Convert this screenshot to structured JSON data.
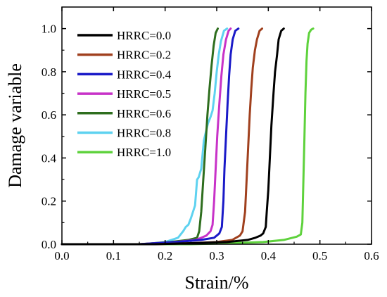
{
  "chart_data": {
    "type": "line",
    "xlabel": "Strain/%",
    "ylabel": "Damage variable",
    "xlim": [
      0.0,
      0.6
    ],
    "ylim": [
      0.0,
      1.1
    ],
    "x_ticks": [
      "0.0",
      "0.1",
      "0.2",
      "0.3",
      "0.4",
      "0.5",
      "0.6"
    ],
    "y_ticks": [
      "0.0",
      "0.2",
      "0.4",
      "0.6",
      "0.8",
      "1.0"
    ],
    "x_tick_values": [
      0.0,
      0.1,
      0.2,
      0.3,
      0.4,
      0.5,
      0.6
    ],
    "y_tick_values": [
      0.0,
      0.2,
      0.4,
      0.6,
      0.8,
      1.0
    ],
    "grid": false,
    "legend_position": "top-left",
    "series": [
      {
        "name": "HRRC=0.0",
        "color": "#000000",
        "x": [
          0.0,
          0.18,
          0.25,
          0.32,
          0.36,
          0.375,
          0.385,
          0.39,
          0.395,
          0.397,
          0.4,
          0.403,
          0.406,
          0.41,
          0.413,
          0.417,
          0.42,
          0.425,
          0.43
        ],
        "y": [
          0.0,
          0.0,
          0.005,
          0.01,
          0.02,
          0.03,
          0.04,
          0.05,
          0.08,
          0.15,
          0.25,
          0.4,
          0.55,
          0.7,
          0.8,
          0.88,
          0.95,
          0.99,
          1.0
        ]
      },
      {
        "name": "HRRC=0.2",
        "color": "#a0401e",
        "x": [
          0.0,
          0.18,
          0.25,
          0.3,
          0.33,
          0.345,
          0.35,
          0.355,
          0.358,
          0.361,
          0.364,
          0.367,
          0.37,
          0.374,
          0.378,
          0.383,
          0.388
        ],
        "y": [
          0.0,
          0.0,
          0.005,
          0.01,
          0.02,
          0.04,
          0.06,
          0.15,
          0.3,
          0.45,
          0.6,
          0.72,
          0.82,
          0.9,
          0.95,
          0.99,
          1.0
        ]
      },
      {
        "name": "HRRC=0.4",
        "color": "#1a1ac8",
        "x": [
          0.0,
          0.15,
          0.22,
          0.27,
          0.295,
          0.305,
          0.31,
          0.313,
          0.315,
          0.318,
          0.321,
          0.324,
          0.327,
          0.331,
          0.336,
          0.342
        ],
        "y": [
          0.0,
          0.0,
          0.01,
          0.02,
          0.03,
          0.05,
          0.08,
          0.2,
          0.35,
          0.5,
          0.65,
          0.78,
          0.88,
          0.95,
          0.99,
          1.0
        ]
      },
      {
        "name": "HRRC=0.5",
        "color": "#c832c8",
        "x": [
          0.0,
          0.15,
          0.22,
          0.26,
          0.28,
          0.288,
          0.292,
          0.295,
          0.298,
          0.301,
          0.305,
          0.309,
          0.313,
          0.318,
          0.323,
          0.327
        ],
        "y": [
          0.0,
          0.0,
          0.01,
          0.02,
          0.04,
          0.06,
          0.09,
          0.2,
          0.35,
          0.5,
          0.65,
          0.78,
          0.88,
          0.95,
          0.99,
          1.0
        ]
      },
      {
        "name": "HRRC=0.6",
        "color": "#2e6e1e",
        "x": [
          0.0,
          0.15,
          0.21,
          0.245,
          0.262,
          0.266,
          0.27,
          0.274,
          0.278,
          0.282,
          0.286,
          0.29,
          0.294,
          0.298,
          0.302
        ],
        "y": [
          0.0,
          0.0,
          0.01,
          0.02,
          0.03,
          0.06,
          0.15,
          0.3,
          0.45,
          0.6,
          0.72,
          0.83,
          0.92,
          0.98,
          1.0
        ]
      },
      {
        "name": "HRRC=0.8",
        "color": "#5ed2f0",
        "x": [
          0.0,
          0.16,
          0.2,
          0.225,
          0.235,
          0.24,
          0.245,
          0.25,
          0.258,
          0.262,
          0.265,
          0.27,
          0.275,
          0.283,
          0.288,
          0.292,
          0.296,
          0.3,
          0.304,
          0.308,
          0.314,
          0.32
        ],
        "y": [
          0.0,
          0.0,
          0.01,
          0.03,
          0.06,
          0.08,
          0.09,
          0.12,
          0.18,
          0.3,
          0.31,
          0.35,
          0.48,
          0.56,
          0.59,
          0.62,
          0.7,
          0.8,
          0.88,
          0.94,
          0.99,
          1.0
        ]
      },
      {
        "name": "HRRC=1.0",
        "color": "#5ed23c",
        "x": [
          0.0,
          0.25,
          0.33,
          0.39,
          0.43,
          0.455,
          0.463,
          0.466,
          0.468,
          0.47,
          0.472,
          0.474,
          0.476,
          0.479,
          0.483,
          0.487
        ],
        "y": [
          0.0,
          0.0,
          0.005,
          0.01,
          0.02,
          0.035,
          0.045,
          0.1,
          0.3,
          0.5,
          0.7,
          0.85,
          0.93,
          0.98,
          0.995,
          1.0
        ]
      }
    ]
  }
}
